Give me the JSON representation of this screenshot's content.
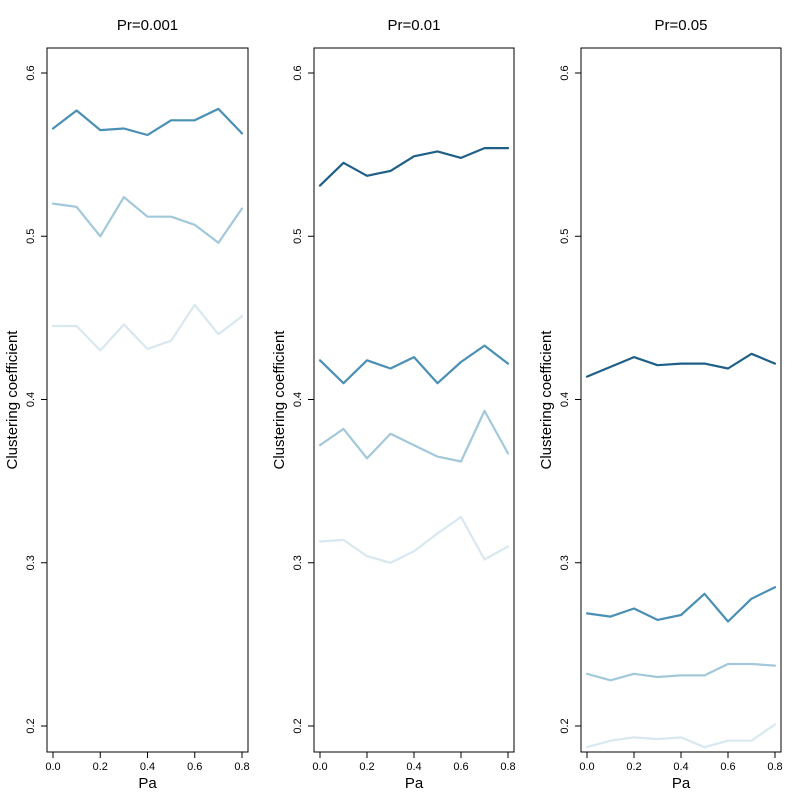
{
  "chart_data": [
    {
      "type": "line",
      "title": "Pr=0.001",
      "xlabel": "Pa",
      "ylabel": "Clustering coefficient",
      "xlim": [
        0,
        0.8
      ],
      "ylim": [
        0.2,
        0.6
      ],
      "x": [
        0,
        0.1,
        0.2,
        0.3,
        0.4,
        0.5,
        0.6,
        0.7,
        0.8
      ],
      "x_ticks": [
        "0.0",
        "0.2",
        "0.4",
        "0.6",
        "0.8"
      ],
      "y_ticks": [
        "0.2",
        "0.3",
        "0.4",
        "0.5",
        "0.6"
      ],
      "series": [
        {
          "color": "#4a8fb4",
          "values": [
            0.566,
            0.577,
            0.565,
            0.566,
            0.562,
            0.571,
            0.571,
            0.578,
            0.563
          ]
        },
        {
          "color": "#a2c8da",
          "values": [
            0.52,
            0.518,
            0.5,
            0.524,
            0.512,
            0.512,
            0.507,
            0.496,
            0.517
          ]
        },
        {
          "color": "#d8e8f0",
          "values": [
            0.445,
            0.445,
            0.43,
            0.446,
            0.431,
            0.436,
            0.458,
            0.44,
            0.451
          ]
        }
      ]
    },
    {
      "type": "line",
      "title": "Pr=0.01",
      "xlabel": "Pa",
      "ylabel": "Clustering coefficient",
      "xlim": [
        0,
        0.8
      ],
      "ylim": [
        0.2,
        0.6
      ],
      "x": [
        0,
        0.1,
        0.2,
        0.3,
        0.4,
        0.5,
        0.6,
        0.7,
        0.8
      ],
      "x_ticks": [
        "0.0",
        "0.2",
        "0.4",
        "0.6",
        "0.8"
      ],
      "y_ticks": [
        "0.2",
        "0.3",
        "0.4",
        "0.5",
        "0.6"
      ],
      "series": [
        {
          "color": "#1f5f88",
          "values": [
            0.531,
            0.545,
            0.537,
            0.54,
            0.549,
            0.552,
            0.548,
            0.554,
            0.554
          ]
        },
        {
          "color": "#4a8fb4",
          "values": [
            0.424,
            0.41,
            0.424,
            0.419,
            0.426,
            0.41,
            0.423,
            0.433,
            0.422
          ]
        },
        {
          "color": "#a2c8da",
          "values": [
            0.372,
            0.382,
            0.364,
            0.379,
            0.372,
            0.365,
            0.362,
            0.393,
            0.367
          ]
        },
        {
          "color": "#d8e8f0",
          "values": [
            0.313,
            0.314,
            0.304,
            0.3,
            0.307,
            0.318,
            0.328,
            0.302,
            0.31
          ]
        }
      ]
    },
    {
      "type": "line",
      "title": "Pr=0.05",
      "xlabel": "Pa",
      "ylabel": "Clustering coefficient",
      "xlim": [
        0,
        0.8
      ],
      "ylim": [
        0.2,
        0.6
      ],
      "x": [
        0,
        0.1,
        0.2,
        0.3,
        0.4,
        0.5,
        0.6,
        0.7,
        0.8
      ],
      "x_ticks": [
        "0.0",
        "0.2",
        "0.4",
        "0.6",
        "0.8"
      ],
      "y_ticks": [
        "0.2",
        "0.3",
        "0.4",
        "0.5",
        "0.6"
      ],
      "series": [
        {
          "color": "#1f5f88",
          "values": [
            0.414,
            0.42,
            0.426,
            0.421,
            0.422,
            0.422,
            0.419,
            0.428,
            0.422
          ]
        },
        {
          "color": "#4a8fb4",
          "values": [
            0.269,
            0.267,
            0.272,
            0.265,
            0.268,
            0.281,
            0.264,
            0.278,
            0.285
          ]
        },
        {
          "color": "#a2c8da",
          "values": [
            0.232,
            0.228,
            0.232,
            0.23,
            0.231,
            0.231,
            0.238,
            0.238,
            0.237
          ]
        },
        {
          "color": "#d8e8f0",
          "values": [
            0.187,
            0.191,
            0.193,
            0.192,
            0.193,
            0.187,
            0.191,
            0.191,
            0.201
          ]
        }
      ]
    }
  ]
}
